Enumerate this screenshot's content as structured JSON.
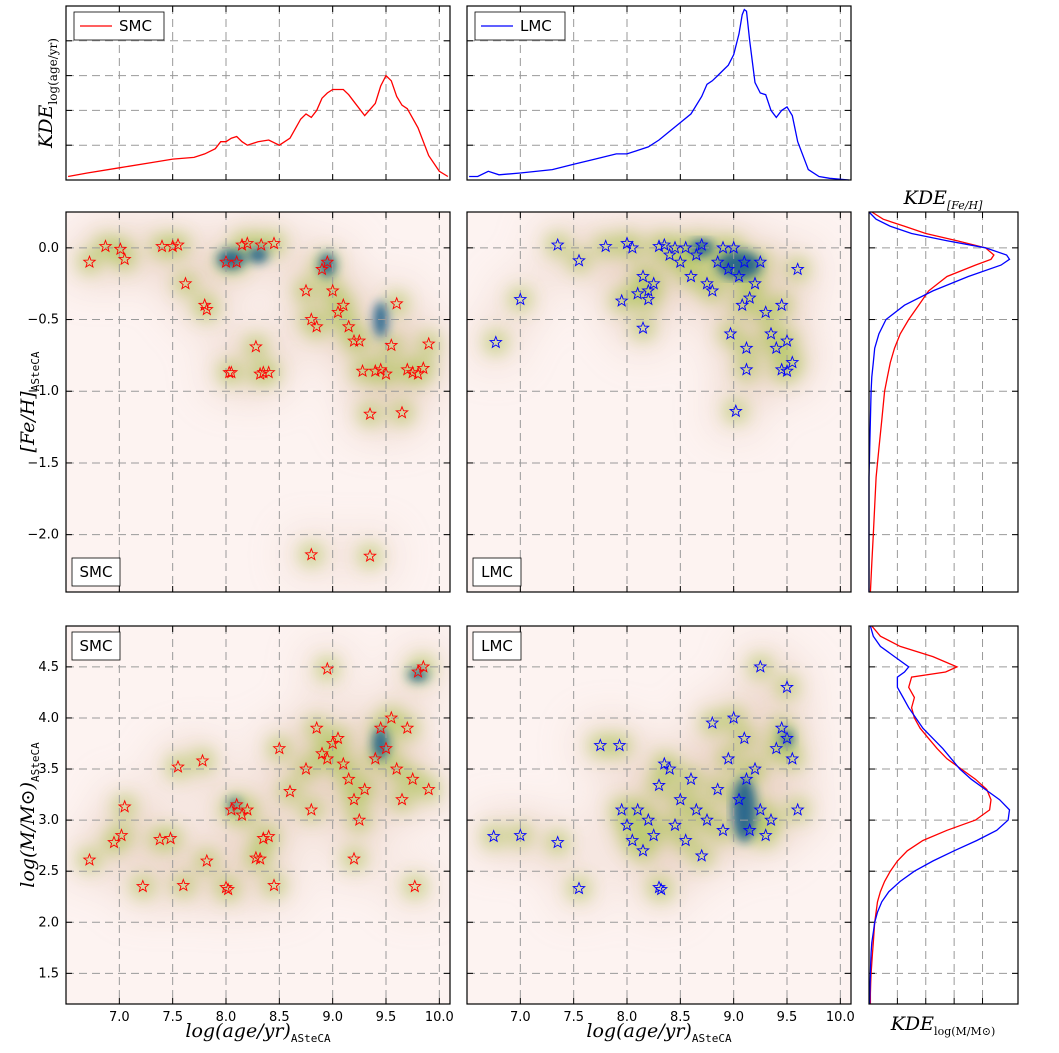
{
  "chart_data": [
    {
      "id": "kde-age-smc",
      "type": "line",
      "ylabel": "KDE log(age/yr)",
      "xlim": [
        6.5,
        10.1
      ],
      "xticks": [
        7.0,
        7.5,
        8.0,
        8.5,
        9.0,
        9.5,
        10.0
      ],
      "ylim": [
        0,
        1.0
      ],
      "legend": {
        "position": "top-left",
        "entries": [
          {
            "name": "SMC",
            "color": "#ff0000"
          }
        ]
      },
      "series": [
        {
          "name": "SMC",
          "color": "#ff0000",
          "x": [
            6.52,
            6.7,
            7.0,
            7.3,
            7.5,
            7.7,
            7.8,
            7.9,
            7.95,
            8.0,
            8.05,
            8.1,
            8.15,
            8.2,
            8.3,
            8.4,
            8.5,
            8.6,
            8.7,
            8.75,
            8.8,
            8.85,
            8.9,
            8.95,
            9.0,
            9.05,
            9.1,
            9.15,
            9.2,
            9.3,
            9.4,
            9.45,
            9.5,
            9.55,
            9.6,
            9.65,
            9.7,
            9.8,
            9.9,
            10.0,
            10.08
          ],
          "y": [
            0.02,
            0.04,
            0.07,
            0.1,
            0.12,
            0.13,
            0.15,
            0.18,
            0.22,
            0.22,
            0.24,
            0.25,
            0.22,
            0.2,
            0.22,
            0.23,
            0.2,
            0.24,
            0.35,
            0.38,
            0.36,
            0.4,
            0.47,
            0.5,
            0.52,
            0.52,
            0.52,
            0.49,
            0.45,
            0.37,
            0.44,
            0.54,
            0.6,
            0.57,
            0.48,
            0.43,
            0.41,
            0.3,
            0.14,
            0.05,
            0.02
          ]
        }
      ]
    },
    {
      "id": "kde-age-lmc",
      "type": "line",
      "xlim": [
        6.5,
        10.1
      ],
      "xticks": [
        7.0,
        7.5,
        8.0,
        8.5,
        9.0,
        9.5,
        10.0
      ],
      "ylim": [
        0,
        1.0
      ],
      "legend": {
        "position": "top-left",
        "entries": [
          {
            "name": "LMC",
            "color": "#0000ff"
          }
        ]
      },
      "series": [
        {
          "name": "LMC",
          "color": "#0000ff",
          "x": [
            6.52,
            6.6,
            6.7,
            6.8,
            7.0,
            7.3,
            7.5,
            7.7,
            7.9,
            8.0,
            8.1,
            8.2,
            8.3,
            8.4,
            8.5,
            8.6,
            8.7,
            8.75,
            8.8,
            8.85,
            8.9,
            8.95,
            9.0,
            9.05,
            9.08,
            9.1,
            9.12,
            9.15,
            9.2,
            9.25,
            9.3,
            9.35,
            9.4,
            9.45,
            9.5,
            9.55,
            9.6,
            9.7,
            9.8,
            9.9,
            10.08
          ],
          "y": [
            0.02,
            0.02,
            0.05,
            0.03,
            0.04,
            0.06,
            0.09,
            0.12,
            0.15,
            0.15,
            0.17,
            0.19,
            0.23,
            0.28,
            0.33,
            0.38,
            0.48,
            0.55,
            0.57,
            0.6,
            0.63,
            0.66,
            0.72,
            0.84,
            0.95,
            0.98,
            0.97,
            0.8,
            0.56,
            0.5,
            0.49,
            0.4,
            0.36,
            0.4,
            0.42,
            0.37,
            0.22,
            0.06,
            0.02,
            0.01,
            0.0
          ]
        }
      ]
    },
    {
      "id": "feh-smc",
      "type": "scatter",
      "ylabel": "[Fe/H] ASteCA",
      "xlim": [
        6.5,
        10.1
      ],
      "ylim": [
        -2.4,
        0.25
      ],
      "xticks": [
        7.0,
        7.5,
        8.0,
        8.5,
        9.0,
        9.5,
        10.0
      ],
      "yticks": [
        0.0,
        -0.5,
        -1.0,
        -1.5,
        -2.0
      ],
      "background": "kde-density",
      "annotation": "SMC",
      "series": [
        {
          "name": "SMC",
          "color": "#ff0000",
          "marker": "star",
          "x": [
            6.72,
            6.87,
            7.01,
            7.05,
            7.4,
            7.5,
            7.55,
            7.62,
            7.8,
            7.82,
            8.0,
            8.05,
            8.1,
            8.15,
            8.2,
            8.28,
            8.32,
            8.35,
            8.4,
            8.45,
            8.75,
            8.8,
            8.85,
            8.9,
            8.95,
            9.0,
            9.05,
            9.1,
            9.15,
            9.2,
            9.25,
            9.35,
            9.4,
            9.45,
            9.5,
            9.55,
            9.6,
            9.65,
            9.7,
            9.75,
            9.8,
            9.85,
            9.9,
            8.8,
            9.35,
            8.33,
            8.03,
            9.28
          ],
          "y": [
            -0.1,
            0.01,
            -0.01,
            -0.08,
            0.01,
            0.01,
            0.02,
            -0.25,
            -0.4,
            -0.43,
            -0.1,
            -0.87,
            -0.1,
            0.02,
            0.03,
            -0.69,
            -0.88,
            -0.87,
            -0.87,
            0.03,
            -0.3,
            -0.5,
            -0.55,
            -0.15,
            -0.1,
            -0.3,
            -0.45,
            -0.4,
            -0.55,
            -0.65,
            -0.65,
            -1.16,
            -0.86,
            -0.85,
            -0.88,
            -0.68,
            -0.39,
            -1.15,
            -0.85,
            -0.87,
            -0.88,
            -0.84,
            -0.67,
            -2.14,
            -2.15,
            0.02,
            -0.87,
            -0.86
          ]
        }
      ]
    },
    {
      "id": "feh-lmc",
      "type": "scatter",
      "xlim": [
        6.5,
        10.1
      ],
      "ylim": [
        -2.4,
        0.25
      ],
      "xticks": [
        7.0,
        7.5,
        8.0,
        8.5,
        9.0,
        9.5,
        10.0
      ],
      "yticks": [
        0.0,
        -0.5,
        -1.0,
        -1.5,
        -2.0
      ],
      "background": "kde-density",
      "annotation": "LMC",
      "series": [
        {
          "name": "LMC",
          "color": "#0000ff",
          "marker": "star",
          "x": [
            6.77,
            7.0,
            7.35,
            7.55,
            7.8,
            7.95,
            8.0,
            8.05,
            8.1,
            8.15,
            8.2,
            8.25,
            8.3,
            8.35,
            8.4,
            8.45,
            8.5,
            8.55,
            8.6,
            8.65,
            8.7,
            8.75,
            8.8,
            8.85,
            8.9,
            8.95,
            9.0,
            9.05,
            9.08,
            9.1,
            9.12,
            9.15,
            9.2,
            9.25,
            9.3,
            9.35,
            9.4,
            9.45,
            9.5,
            9.55,
            9.6,
            9.02,
            8.15,
            8.2,
            8.97,
            9.12,
            9.45,
            9.5
          ],
          "y": [
            -0.66,
            -0.36,
            0.02,
            -0.09,
            0.01,
            -0.37,
            0.03,
            0.0,
            -0.32,
            -0.56,
            -0.36,
            -0.25,
            0.01,
            0.02,
            -0.05,
            0.0,
            -0.1,
            0.0,
            -0.2,
            -0.05,
            0.02,
            -0.25,
            -0.3,
            -0.1,
            0.0,
            -0.15,
            0.0,
            -0.2,
            -0.4,
            -0.1,
            -0.7,
            -0.35,
            -0.25,
            -0.1,
            -0.45,
            -0.6,
            -0.7,
            -0.85,
            -0.65,
            -0.8,
            -0.15,
            -1.14,
            -0.2,
            -0.3,
            -0.6,
            -0.85,
            -0.4,
            -0.86
          ]
        }
      ]
    },
    {
      "id": "kde-feh",
      "type": "line",
      "title": "KDE [Fe/H]",
      "ylim": [
        -2.4,
        0.25
      ],
      "orientation": "vertical",
      "series": [
        {
          "name": "SMC",
          "color": "#ff0000",
          "y": [
            0.25,
            0.2,
            0.15,
            0.1,
            0.05,
            0.0,
            -0.05,
            -0.08,
            -0.12,
            -0.2,
            -0.3,
            -0.4,
            -0.5,
            -0.6,
            -0.7,
            -0.8,
            -0.9,
            -1.0,
            -1.2,
            -1.4,
            -1.6,
            -1.8,
            -2.0,
            -2.2,
            -2.4
          ],
          "x": [
            0.02,
            0.1,
            0.25,
            0.4,
            0.62,
            0.82,
            0.88,
            0.86,
            0.75,
            0.55,
            0.42,
            0.35,
            0.28,
            0.22,
            0.18,
            0.15,
            0.13,
            0.11,
            0.09,
            0.07,
            0.05,
            0.04,
            0.03,
            0.02,
            0.01
          ]
        },
        {
          "name": "LMC",
          "color": "#0000ff",
          "y": [
            0.25,
            0.2,
            0.15,
            0.1,
            0.05,
            0.0,
            -0.05,
            -0.08,
            -0.12,
            -0.2,
            -0.3,
            -0.4,
            -0.5,
            -0.6,
            -0.7,
            -0.8,
            -0.9,
            -1.0,
            -1.2,
            -1.4,
            -1.6,
            -1.8,
            -2.0,
            -2.2,
            -2.4
          ],
          "x": [
            0.0,
            0.05,
            0.15,
            0.3,
            0.55,
            0.82,
            0.97,
            0.99,
            0.93,
            0.7,
            0.45,
            0.25,
            0.12,
            0.07,
            0.04,
            0.03,
            0.02,
            0.015,
            0.01,
            0.005,
            0.0,
            0.0,
            0.0,
            0.0,
            0.0
          ]
        }
      ]
    },
    {
      "id": "mass-smc",
      "type": "scatter",
      "xlabel": "log(age/yr) ASteCA",
      "ylabel": "log(M/M⊙) ASteCA",
      "xlim": [
        6.5,
        10.1
      ],
      "ylim": [
        1.2,
        4.9
      ],
      "xticks": [
        7.0,
        7.5,
        8.0,
        8.5,
        9.0,
        9.5,
        10.0
      ],
      "yticks": [
        1.5,
        2.0,
        2.5,
        3.0,
        3.5,
        4.0,
        4.5
      ],
      "background": "kde-density",
      "annotation": "SMC",
      "series": [
        {
          "name": "SMC",
          "color": "#ff0000",
          "marker": "star",
          "x": [
            6.72,
            6.95,
            7.02,
            7.05,
            7.22,
            7.38,
            7.48,
            7.55,
            7.6,
            7.78,
            7.82,
            8.0,
            8.02,
            8.05,
            8.1,
            8.15,
            8.2,
            8.28,
            8.32,
            8.35,
            8.4,
            8.45,
            8.5,
            8.6,
            8.75,
            8.8,
            8.85,
            8.9,
            8.95,
            9.0,
            9.05,
            9.1,
            9.15,
            9.2,
            9.25,
            9.3,
            9.4,
            9.45,
            9.5,
            9.55,
            9.6,
            9.65,
            9.7,
            9.75,
            9.8,
            9.85,
            9.9,
            8.95,
            9.2,
            9.77
          ],
          "y": [
            2.61,
            2.78,
            2.85,
            3.13,
            2.35,
            2.81,
            2.82,
            3.52,
            2.36,
            3.58,
            2.6,
            2.34,
            2.32,
            3.1,
            3.15,
            3.05,
            3.1,
            2.63,
            2.62,
            2.82,
            2.84,
            2.36,
            3.7,
            3.28,
            3.5,
            3.1,
            3.9,
            3.65,
            3.6,
            3.75,
            3.8,
            3.55,
            3.4,
            3.2,
            3.0,
            3.3,
            3.6,
            3.9,
            3.7,
            4.0,
            3.5,
            3.2,
            3.9,
            3.4,
            4.45,
            4.5,
            3.3,
            4.48,
            2.62,
            2.35
          ]
        }
      ]
    },
    {
      "id": "mass-lmc",
      "type": "scatter",
      "xlabel": "log(age/yr) ASteCA",
      "xlim": [
        6.5,
        10.1
      ],
      "ylim": [
        1.2,
        4.9
      ],
      "xticks": [
        7.0,
        7.5,
        8.0,
        8.5,
        9.0,
        9.5,
        10.0
      ],
      "yticks": [
        1.5,
        2.0,
        2.5,
        3.0,
        3.5,
        4.0,
        4.5
      ],
      "background": "kde-density",
      "annotation": "LMC",
      "series": [
        {
          "name": "LMC",
          "color": "#0000ff",
          "marker": "star",
          "x": [
            6.75,
            7.0,
            7.35,
            7.55,
            7.75,
            7.93,
            7.95,
            8.0,
            8.05,
            8.1,
            8.15,
            8.2,
            8.25,
            8.3,
            8.32,
            8.35,
            8.4,
            8.45,
            8.5,
            8.55,
            8.6,
            8.65,
            8.7,
            8.75,
            8.8,
            8.85,
            8.9,
            8.95,
            9.0,
            9.05,
            9.1,
            9.12,
            9.15,
            9.2,
            9.25,
            9.3,
            9.35,
            9.4,
            9.45,
            9.5,
            9.55,
            9.6,
            9.25,
            9.5,
            8.3
          ],
          "y": [
            2.84,
            2.85,
            2.78,
            2.33,
            3.73,
            3.73,
            3.1,
            2.95,
            2.8,
            3.1,
            2.7,
            3.0,
            2.85,
            3.34,
            2.32,
            3.55,
            3.5,
            2.95,
            3.2,
            2.8,
            3.4,
            3.1,
            2.65,
            3.0,
            3.95,
            3.3,
            2.9,
            3.6,
            4.0,
            3.2,
            3.8,
            3.4,
            2.9,
            3.5,
            3.1,
            2.85,
            3.0,
            3.7,
            3.9,
            3.8,
            3.6,
            3.1,
            4.5,
            4.3,
            2.34
          ]
        }
      ]
    },
    {
      "id": "kde-mass",
      "type": "line",
      "xlabel": "KDE log(M/M⊙)",
      "ylim": [
        1.2,
        4.9
      ],
      "orientation": "vertical",
      "series": [
        {
          "name": "SMC",
          "color": "#ff0000",
          "y": [
            4.9,
            4.8,
            4.7,
            4.6,
            4.5,
            4.45,
            4.4,
            4.3,
            4.2,
            4.1,
            4.0,
            3.9,
            3.8,
            3.7,
            3.6,
            3.5,
            3.4,
            3.3,
            3.2,
            3.1,
            3.0,
            2.9,
            2.8,
            2.7,
            2.6,
            2.5,
            2.4,
            2.3,
            2.2,
            2.1,
            2.0,
            1.9,
            1.8,
            1.7,
            1.6,
            1.5,
            1.4,
            1.3,
            1.2
          ],
          "x": [
            0.02,
            0.08,
            0.22,
            0.45,
            0.62,
            0.54,
            0.3,
            0.28,
            0.32,
            0.3,
            0.32,
            0.36,
            0.42,
            0.48,
            0.55,
            0.65,
            0.75,
            0.83,
            0.86,
            0.85,
            0.75,
            0.55,
            0.38,
            0.27,
            0.2,
            0.15,
            0.11,
            0.08,
            0.06,
            0.05,
            0.04,
            0.035,
            0.03,
            0.025,
            0.02,
            0.015,
            0.012,
            0.01,
            0.01
          ]
        },
        {
          "name": "LMC",
          "color": "#0000ff",
          "y": [
            4.9,
            4.8,
            4.7,
            4.6,
            4.5,
            4.45,
            4.4,
            4.3,
            4.2,
            4.1,
            4.0,
            3.9,
            3.8,
            3.7,
            3.6,
            3.5,
            3.4,
            3.3,
            3.2,
            3.1,
            3.0,
            2.9,
            2.8,
            2.7,
            2.6,
            2.5,
            2.4,
            2.3,
            2.2,
            2.1,
            2.0,
            1.9,
            1.8,
            1.7,
            1.6,
            1.5,
            1.4,
            1.3,
            1.2
          ],
          "x": [
            0.01,
            0.03,
            0.08,
            0.18,
            0.28,
            0.25,
            0.2,
            0.2,
            0.24,
            0.28,
            0.33,
            0.38,
            0.45,
            0.52,
            0.58,
            0.64,
            0.72,
            0.82,
            0.92,
            0.99,
            0.98,
            0.9,
            0.76,
            0.6,
            0.45,
            0.32,
            0.22,
            0.14,
            0.09,
            0.06,
            0.04,
            0.03,
            0.02,
            0.015,
            0.012,
            0.01,
            0.008,
            0.006,
            0.005
          ]
        }
      ]
    }
  ]
}
